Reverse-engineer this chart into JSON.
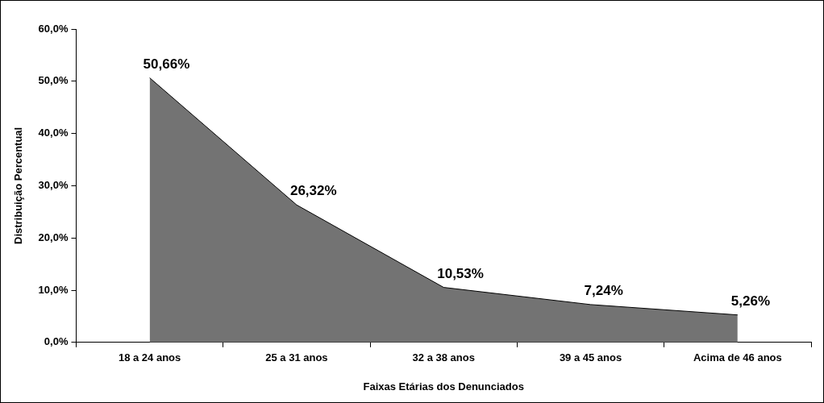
{
  "chart_data": {
    "type": "area",
    "xlabel": "Faixas Etárias dos Denunciados",
    "ylabel": "Distribuição Percentual",
    "categories": [
      "18 a 24 anos",
      "25 a 31 anos",
      "32 a 38 anos",
      "39 a 45 anos",
      "Acima de 46 anos"
    ],
    "series": [
      {
        "color": "#737373",
        "values": [
          50.66,
          26.32,
          10.53,
          7.24,
          5.26
        ],
        "value_labels": [
          "50,66%",
          "26,32%",
          "10,53%",
          "7,24%",
          "5,26%"
        ]
      }
    ],
    "ylim": [
      0,
      60
    ],
    "yticks": [
      {
        "value": 0,
        "label": "0,0%"
      },
      {
        "value": 10,
        "label": "10,0%"
      },
      {
        "value": 20,
        "label": "20,0%"
      },
      {
        "value": 30,
        "label": "30,0%"
      },
      {
        "value": 40,
        "label": "40,0%"
      },
      {
        "value": 50,
        "label": "50,0%"
      },
      {
        "value": 60,
        "label": "60,0%"
      }
    ],
    "grid": false,
    "legend": false
  }
}
